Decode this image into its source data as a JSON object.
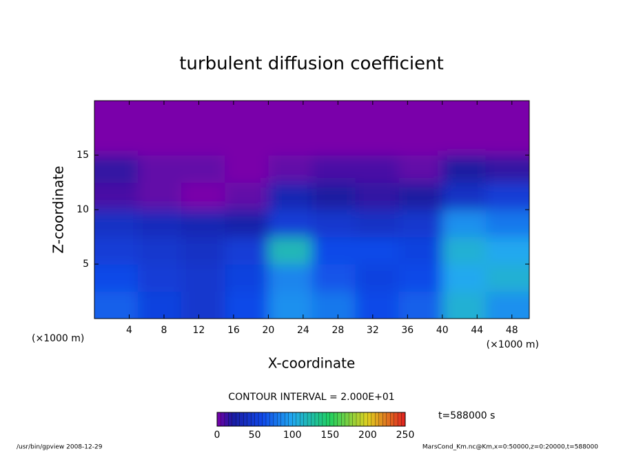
{
  "chart_data": {
    "type": "heatmap",
    "title": "turbulent diffusion coefficient",
    "x_label": "X-coordinate",
    "y_label": "Z-coordinate",
    "x_unit": "(×1000 m)",
    "y_unit": "(×1000 m)",
    "x": [
      2.5,
      7.5,
      12.5,
      17.5,
      22.5,
      27.5,
      32.5,
      37.5,
      42.5,
      47.5
    ],
    "y": [
      1.25,
      3.75,
      6.25,
      8.75,
      11.25,
      13.75,
      16.25,
      18.75
    ],
    "z": [
      [
        70,
        55,
        45,
        60,
        90,
        80,
        60,
        70,
        110,
        90
      ],
      [
        60,
        50,
        45,
        55,
        85,
        65,
        55,
        60,
        100,
        110
      ],
      [
        50,
        45,
        40,
        50,
        120,
        60,
        60,
        55,
        110,
        100
      ],
      [
        40,
        35,
        30,
        25,
        50,
        45,
        40,
        45,
        90,
        80
      ],
      [
        10,
        5,
        0,
        5,
        30,
        20,
        15,
        20,
        40,
        50
      ],
      [
        15,
        5,
        5,
        0,
        5,
        10,
        10,
        5,
        20,
        15
      ],
      [
        0,
        0,
        0,
        0,
        0,
        0,
        0,
        0,
        0,
        0
      ],
      [
        0,
        0,
        0,
        0,
        0,
        0,
        0,
        0,
        0,
        0
      ]
    ],
    "xlim": [
      0,
      50
    ],
    "ylim": [
      0,
      20
    ],
    "xticks": [
      4,
      8,
      12,
      16,
      20,
      24,
      28,
      32,
      36,
      40,
      44,
      48
    ],
    "yticks": [
      5,
      10,
      15
    ],
    "colorscale": [
      {
        "value": 0,
        "color": "#7a00aa"
      },
      {
        "value": 20,
        "color": "#1a1aa0"
      },
      {
        "value": 60,
        "color": "#1048e8"
      },
      {
        "value": 100,
        "color": "#20a8f0"
      },
      {
        "value": 150,
        "color": "#20d060"
      },
      {
        "value": 200,
        "color": "#e0d020"
      },
      {
        "value": 250,
        "color": "#e02020"
      }
    ],
    "colorbar_lim": [
      0,
      250
    ],
    "colorbar_ticks": [
      0,
      50,
      100,
      150,
      200,
      250
    ],
    "contour_interval": "CONTOUR INTERVAL = 2.000E+01",
    "time_label": "t=588000 s",
    "footer_left": "/usr/bin/gpview   2008-12-29",
    "footer_right": "MarsCond_Km.nc@Km,x=0:50000,z=0:20000,t=588000"
  }
}
